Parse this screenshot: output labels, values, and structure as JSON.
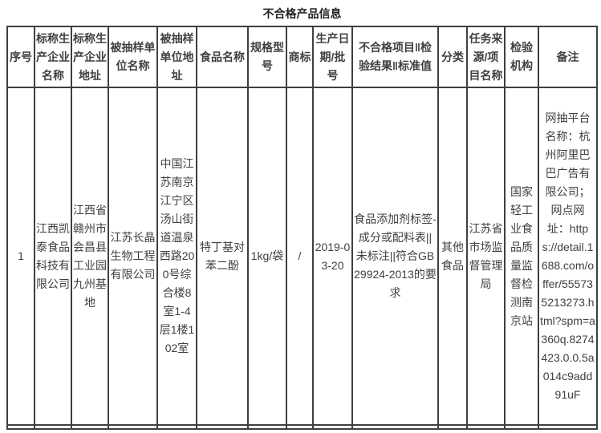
{
  "page": {
    "title": "不合格产品信息"
  },
  "colors": {
    "background": "#ffffff",
    "border": "#3f3f3f",
    "text": "#404040",
    "title_text": "#1f1f1f"
  },
  "table": {
    "columns": [
      "序号",
      "标称生产企业名称",
      "标称生产企业地址",
      "被抽样单位名称",
      "被抽样单位地址",
      "食品名称",
      "规格型号",
      "商标",
      "生产日期/批号",
      "不合格项目‖检验结果‖标准值",
      "分类",
      "任务来源/项目名称",
      "检验机构",
      "备注"
    ],
    "rows": [
      [
        "1",
        "江西凯泰食品科技有限公司",
        "江西省赣州市会昌县工业园九州基地",
        "江苏长晶生物工程有限公司",
        "中国江苏南京江宁区汤山街道温泉西路200号综合楼8室1-4层1楼102室",
        "特丁基对苯二酚",
        "1kg/袋",
        "/",
        "2019-03-20",
        "食品添加剂标签-成分或配料表||未标注||符合GB29924-2013的要求",
        "其他食品",
        "江苏省市场监督管理局",
        "国家轻工业食品质量监督检测南京站",
        "网抽平台名称：杭州阿里巴巴广告有限公司；网点网址：https://detail.1688.com/offer/555735213273.html?spm=a360q.8274423.0.0.5a014c9add91uF"
      ]
    ]
  }
}
